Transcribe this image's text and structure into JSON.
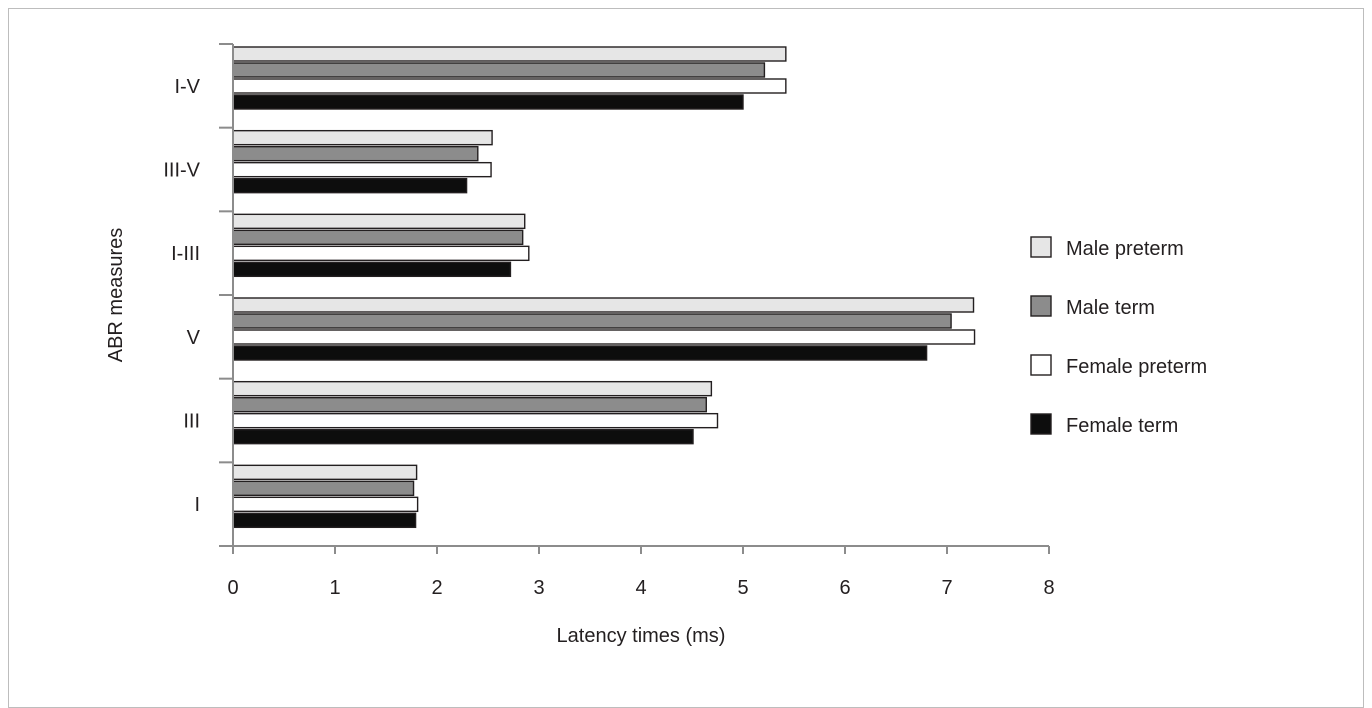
{
  "chart_data": {
    "type": "bar",
    "orientation": "horizontal",
    "title": "",
    "xlabel": "Latency times (ms)",
    "ylabel": "ABR measures",
    "xlim": [
      0,
      8
    ],
    "xticks": [
      "0",
      "1",
      "2",
      "3",
      "4",
      "5",
      "6",
      "7",
      "8"
    ],
    "categories": [
      "I-V",
      "III-V",
      "I-III",
      "V",
      "III",
      "I"
    ],
    "series": [
      {
        "name": "Male preterm",
        "color": "#e6e6e6",
        "values": [
          5.42,
          2.54,
          2.86,
          7.26,
          4.69,
          1.8
        ]
      },
      {
        "name": "Male term",
        "color": "#8c8c8c",
        "values": [
          5.21,
          2.4,
          2.84,
          7.04,
          4.64,
          1.77
        ]
      },
      {
        "name": "Female preterm",
        "color": "#ffffff",
        "values": [
          5.42,
          2.53,
          2.9,
          7.27,
          4.75,
          1.81
        ]
      },
      {
        "name": "Female term",
        "color": "#0d0d0d",
        "values": [
          5.0,
          2.29,
          2.72,
          6.8,
          4.51,
          1.79
        ]
      }
    ],
    "legend_position": "right",
    "grid": false
  }
}
